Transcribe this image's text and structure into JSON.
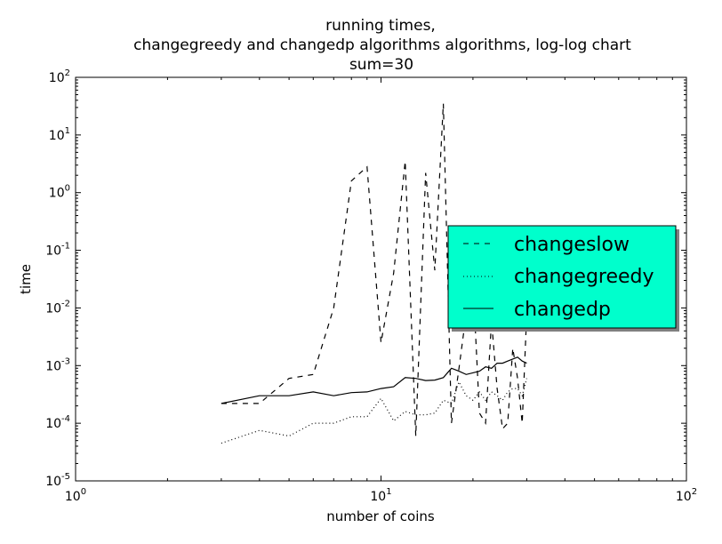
{
  "chart_data": {
    "type": "line",
    "title": [
      "running times,",
      "changegreedy and changedp algorithms algorithms, log-log chart",
      "sum=30"
    ],
    "xlabel": "number of coins",
    "ylabel": "time",
    "xscale": "log",
    "yscale": "log",
    "xlim": [
      1,
      100
    ],
    "ylim": [
      1e-05,
      100
    ],
    "grid": false,
    "legend_placement": "center-right",
    "legend_color": "#00ffcc",
    "x_ticks": [
      {
        "base": "10",
        "exp": "0",
        "value": 1
      },
      {
        "base": "10",
        "exp": "1",
        "value": 10
      },
      {
        "base": "10",
        "exp": "2",
        "value": 100
      }
    ],
    "y_ticks": [
      {
        "base": "10",
        "exp": "-5",
        "value": 1e-05
      },
      {
        "base": "10",
        "exp": "-4",
        "value": 0.0001
      },
      {
        "base": "10",
        "exp": "-3",
        "value": 0.001
      },
      {
        "base": "10",
        "exp": "-2",
        "value": 0.01
      },
      {
        "base": "10",
        "exp": "-1",
        "value": 0.1
      },
      {
        "base": "10",
        "exp": "0",
        "value": 1
      },
      {
        "base": "10",
        "exp": "1",
        "value": 10
      },
      {
        "base": "10",
        "exp": "2",
        "value": 100
      }
    ],
    "series": [
      {
        "name": "changeslow",
        "style": "dashed",
        "points": [
          [
            3,
            0.00022
          ],
          [
            4,
            0.00022
          ],
          [
            5,
            0.0006
          ],
          [
            6,
            0.0007
          ],
          [
            7,
            0.01
          ],
          [
            8,
            1.6
          ],
          [
            9,
            2.8
          ],
          [
            10,
            0.0025
          ],
          [
            11,
            0.04
          ],
          [
            12,
            3.5
          ],
          [
            13,
            6e-05
          ],
          [
            14,
            2.2
          ],
          [
            15,
            0.045
          ],
          [
            16,
            35
          ],
          [
            17,
            0.0001
          ],
          [
            18,
            0.0009
          ],
          [
            19,
            0.008
          ],
          [
            20,
            0.03
          ],
          [
            21,
            0.00015
          ],
          [
            22,
            0.0001
          ],
          [
            23,
            0.006
          ],
          [
            24,
            0.0004
          ],
          [
            25,
            8e-05
          ],
          [
            26,
            0.0001
          ],
          [
            27,
            0.002
          ],
          [
            28,
            0.0006
          ],
          [
            29,
            0.0001
          ],
          [
            30,
            0.008
          ]
        ]
      },
      {
        "name": "changegreedy",
        "style": "dotted",
        "points": [
          [
            3,
            4.5e-05
          ],
          [
            4,
            7.5e-05
          ],
          [
            5,
            6e-05
          ],
          [
            6,
            0.0001
          ],
          [
            7,
            0.0001
          ],
          [
            8,
            0.00013
          ],
          [
            9,
            0.00013
          ],
          [
            10,
            0.00027
          ],
          [
            11,
            0.00011
          ],
          [
            12,
            0.00016
          ],
          [
            13,
            0.00014
          ],
          [
            14,
            0.00014
          ],
          [
            15,
            0.00015
          ],
          [
            16,
            0.00025
          ],
          [
            17,
            0.00022
          ],
          [
            18,
            0.00052
          ],
          [
            19,
            0.0003
          ],
          [
            20,
            0.00025
          ],
          [
            21,
            0.00035
          ],
          [
            22,
            0.00025
          ],
          [
            23,
            0.00035
          ],
          [
            24,
            0.0003
          ],
          [
            25,
            0.00025
          ],
          [
            26,
            0.00035
          ],
          [
            27,
            0.0004
          ],
          [
            28,
            0.0004
          ],
          [
            29,
            0.0003
          ],
          [
            30,
            0.0006
          ]
        ]
      },
      {
        "name": "changedp",
        "style": "solid",
        "points": [
          [
            3,
            0.00022
          ],
          [
            4,
            0.0003
          ],
          [
            5,
            0.0003
          ],
          [
            6,
            0.00035
          ],
          [
            7,
            0.0003
          ],
          [
            8,
            0.00034
          ],
          [
            9,
            0.00035
          ],
          [
            10,
            0.0004
          ],
          [
            11,
            0.00043
          ],
          [
            12,
            0.00062
          ],
          [
            13,
            0.0006
          ],
          [
            14,
            0.00055
          ],
          [
            15,
            0.00056
          ],
          [
            16,
            0.00062
          ],
          [
            17,
            0.0009
          ],
          [
            18,
            0.0008
          ],
          [
            19,
            0.0007
          ],
          [
            20,
            0.00075
          ],
          [
            21,
            0.0008
          ],
          [
            22,
            0.00095
          ],
          [
            23,
            0.0009
          ],
          [
            24,
            0.0011
          ],
          [
            25,
            0.0011
          ],
          [
            26,
            0.0012
          ],
          [
            27,
            0.0013
          ],
          [
            28,
            0.0014
          ],
          [
            29,
            0.0012
          ],
          [
            30,
            0.0011
          ]
        ]
      }
    ]
  }
}
